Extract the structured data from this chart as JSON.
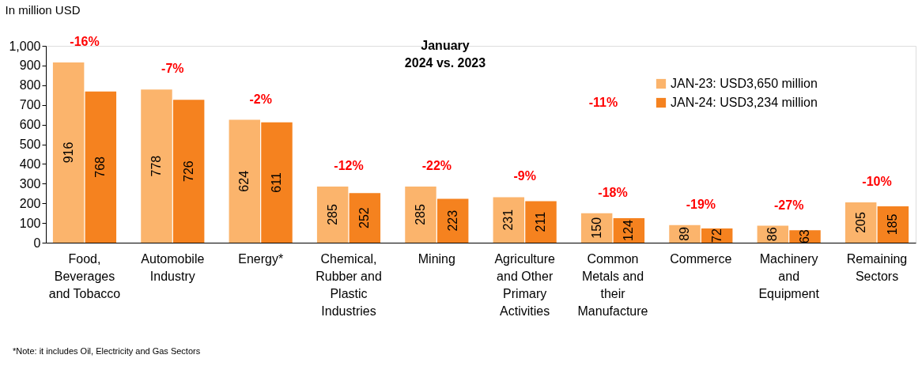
{
  "chart_data": {
    "type": "bar",
    "title": "January\n2024 vs. 2023",
    "ylabel": "In million USD",
    "categories": [
      "Food,\nBeverages\nand Tobacco",
      "Automobile\nIndustry",
      "Energy*",
      "Chemical,\nRubber and\nPlastic\nIndustries",
      "Mining",
      "Agriculture\nand Other\nPrimary\nActivities",
      "Common\nMetals and\ntheir\nManufacture",
      "Commerce",
      "Machinery\nand\nEquipment",
      "Remaining\nSectors"
    ],
    "series": [
      {
        "name": "JAN-23: USD3,650 million",
        "color": "#fbb46c",
        "values": [
          916,
          778,
          624,
          285,
          285,
          231,
          150,
          89,
          86,
          205
        ]
      },
      {
        "name": "JAN-24: USD3,234 million",
        "color": "#f5821f",
        "values": [
          768,
          726,
          611,
          252,
          223,
          211,
          124,
          72,
          63,
          185
        ]
      }
    ],
    "ylim": [
      0,
      1000
    ],
    "yticks": [
      0,
      100,
      200,
      300,
      400,
      500,
      600,
      700,
      800,
      900,
      {
        "value": 1000,
        "label": "1,000"
      }
    ],
    "data_labels": true,
    "legend": "top right",
    "annotations": [
      {
        "text": "-16%",
        "x": "Food,\nBeverages\nand Tobacco",
        "y": 916
      },
      {
        "text": "-7%",
        "x": "Automobile\nIndustry",
        "y": 778
      },
      {
        "text": "-2%",
        "x": "Energy*",
        "y": 624
      },
      {
        "text": "-12%",
        "x": "Chemical,\nRubber and\nPlastic\nIndustries",
        "y": 285
      },
      {
        "text": "-22%",
        "x": "Mining",
        "y": 285
      },
      {
        "text": "-9%",
        "x": "Agriculture\nand Other\nPrimary\nActivities",
        "y": 231
      },
      {
        "text": "-18%",
        "x": "Common\nMetals and\ntheir\nManufacture",
        "y": 150
      },
      {
        "text": "-19%",
        "x": "Commerce",
        "y": 89
      },
      {
        "text": "-27%",
        "x": "Machinery\nand\nEquipment",
        "y": 86
      },
      {
        "text": "-10%",
        "x": "Remaining\nSectors",
        "y": 205
      },
      "-11%",
      "*Note: it includes Oil, Electricity and Gas Sectors"
    ]
  }
}
